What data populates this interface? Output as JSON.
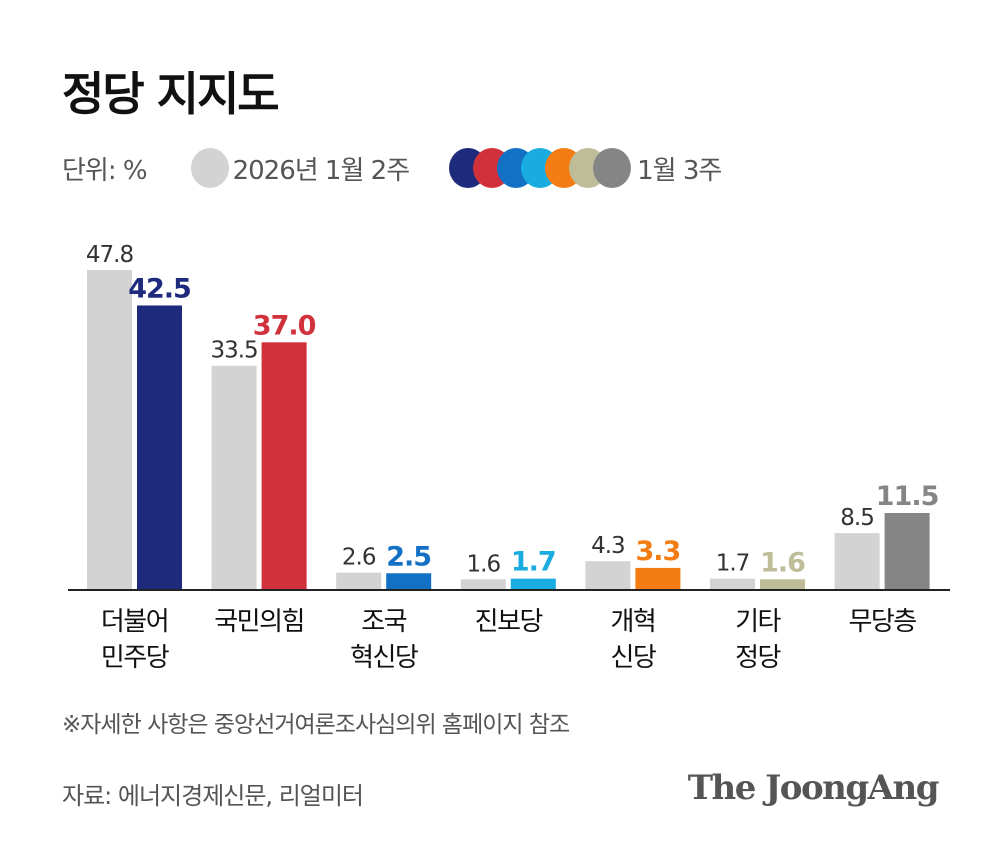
{
  "title": "정당 지지도",
  "legend": {
    "unit": "단위: %",
    "prev_label": "2026년 1월 2주",
    "curr_label": "1월 3주"
  },
  "chart_data": {
    "type": "bar",
    "title": "정당 지지도",
    "ylabel": "%",
    "ylim": [
      0,
      50
    ],
    "grid": false,
    "categories": [
      [
        "더불어",
        "민주당"
      ],
      [
        "국민의힘"
      ],
      [
        "조국",
        "혁신당"
      ],
      [
        "진보당"
      ],
      [
        "개혁",
        "신당"
      ],
      [
        "기타",
        "정당"
      ],
      [
        "무당층"
      ]
    ],
    "series": [
      {
        "name": "2026년 1월 2주",
        "values": [
          47.8,
          33.5,
          2.6,
          1.6,
          4.3,
          1.7,
          8.5
        ],
        "color": "#d3d3d3"
      },
      {
        "name": "1월 3주",
        "values": [
          42.5,
          37.0,
          2.5,
          1.7,
          3.3,
          1.6,
          11.5
        ],
        "colors": [
          "#1e2a7c",
          "#d0313a",
          "#1271c4",
          "#1aabe0",
          "#f47d13",
          "#bfbc98",
          "#858585"
        ]
      }
    ]
  },
  "footer": {
    "note": "※자세한 사항은 중앙선거여론조사심의위 홈페이지 참조",
    "source": "자료: 에너지경제신문, 리얼미터",
    "logo": "The JoongAng"
  }
}
